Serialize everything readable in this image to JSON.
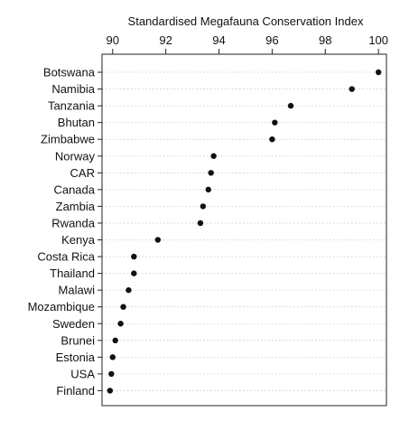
{
  "chart_data": {
    "type": "scatter",
    "title": "",
    "xlabel": "Standardised Megafauna Conservation Index",
    "ylabel": "",
    "xlim": [
      89.6,
      100.3
    ],
    "x_ticks": [
      90,
      92,
      94,
      96,
      98,
      100
    ],
    "x_axis_position": "top",
    "grid": true,
    "legend": "none",
    "marker_color": "#111111",
    "categories": [
      "Botswana",
      "Namibia",
      "Tanzania",
      "Bhutan",
      "Zimbabwe",
      "Norway",
      "CAR",
      "Canada",
      "Zambia",
      "Rwanda",
      "Kenya",
      "Costa Rica",
      "Thailand",
      "Malawi",
      "Mozambique",
      "Sweden",
      "Brunei",
      "Estonia",
      "USA",
      "Finland"
    ],
    "values": [
      100.0,
      99.0,
      96.7,
      96.1,
      96.0,
      93.8,
      93.7,
      93.6,
      93.4,
      93.3,
      91.7,
      90.8,
      90.8,
      90.6,
      90.4,
      90.3,
      90.1,
      90.0,
      89.95,
      89.9
    ]
  }
}
